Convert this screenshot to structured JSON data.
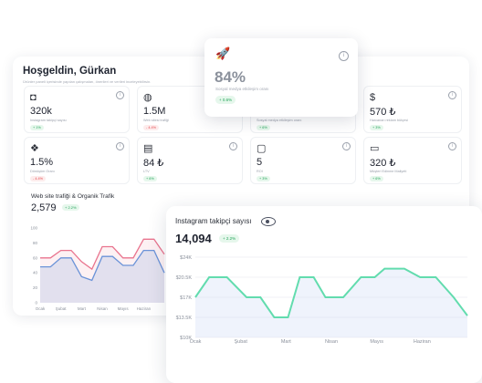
{
  "dashboard": {
    "greeting": "Hoşgeldin, Gürkan",
    "subtitle": "Ürünler paneli içerisinde yapılan çalışmaları, önerileri ve verileri inceleyebilirsin."
  },
  "rocket_card": {
    "icon": "rocket-icon",
    "value": "84%",
    "label": "Sosyal medya etkileşim oranı",
    "change": "+ 0.6%"
  },
  "tiles": [
    {
      "icon": "instagram-icon",
      "value": "320k",
      "label": "Instagram takipçi sayısı",
      "change": "+ 1%",
      "trend": "pos"
    },
    {
      "icon": "globe-icon",
      "value": "1.5M",
      "label": "Web sitesi trafiği",
      "change": "- 4.4%",
      "trend": "neg"
    },
    {
      "icon": "share-icon",
      "value": "",
      "label": "Sosyal medya etkileşim oranı",
      "change": "+ 6%",
      "trend": "pos"
    },
    {
      "icon": "dollar-icon",
      "value": "570 ₺",
      "label": "Harcanan reklam bütçesi",
      "change": "+ 3%",
      "trend": "pos"
    },
    {
      "icon": "grid-icon",
      "value": "1.5%",
      "label": "Dönüşüm Oranı",
      "change": "- 4.4%",
      "trend": "neg"
    },
    {
      "icon": "ltv-icon",
      "value": "84 ₺",
      "label": "LTV",
      "change": "+ 6%",
      "trend": "pos"
    },
    {
      "icon": "roi-icon",
      "value": "5",
      "label": "ROI",
      "change": "+ 3%",
      "trend": "pos"
    },
    {
      "icon": "card-icon",
      "value": "320 ₺",
      "label": "Müşteri Edinme Maliyeti",
      "change": "+ 6%",
      "trend": "pos"
    }
  ],
  "web_chart": {
    "title": "Web site trafiği & Organik Trafik",
    "value": "2,579",
    "change": "+ 2.2%"
  },
  "insta_chart": {
    "title": "Instagram takipçi sayısı",
    "value": "14,094",
    "change": "+ 2.2%"
  },
  "chart_data": [
    {
      "type": "line",
      "title": "Web site trafiği & Organik Trafik",
      "categories": [
        "Ocak",
        "Şubat",
        "Mart",
        "Nisan",
        "Mayıs",
        "Haziran"
      ],
      "ylim": [
        0,
        100
      ],
      "yticks": [
        0,
        20,
        40,
        60,
        80,
        100
      ],
      "x": [
        0,
        0.5,
        1,
        1.5,
        2,
        2.5,
        3,
        3.5,
        4,
        4.5,
        5,
        5.5,
        6
      ],
      "series": [
        {
          "values": [
            60,
            60,
            70,
            70,
            55,
            45,
            75,
            75,
            60,
            60,
            85,
            85,
            65
          ]
        },
        {
          "values": [
            48,
            48,
            60,
            60,
            35,
            30,
            62,
            62,
            50,
            50,
            70,
            70,
            40
          ]
        }
      ],
      "grid": false,
      "colors": [
        "#e9748e",
        "#6b93d8"
      ]
    },
    {
      "type": "line",
      "title": "Instagram takipçi sayısı",
      "categories": [
        "Ocak",
        "Şubat",
        "Mart",
        "Nisan",
        "Mayıs",
        "Haziran"
      ],
      "yticks": [
        "$10K",
        "$13.5K",
        "$17K",
        "$20.5K",
        "$24K"
      ],
      "ylim": [
        10000,
        24000
      ],
      "x": [
        0,
        0.35,
        0.8,
        1.3,
        1.65,
        2,
        2.35,
        2.65,
        3,
        3.3,
        3.75,
        4.2,
        4.55,
        4.8,
        5.3,
        5.7,
        6.1,
        6.55,
        6.9
      ],
      "series": [
        {
          "values": [
            17000,
            20500,
            20500,
            17000,
            17000,
            13500,
            13500,
            20500,
            20500,
            17000,
            17000,
            20500,
            20500,
            22000,
            22000,
            20500,
            20500,
            17000,
            13800
          ]
        }
      ],
      "grid": true,
      "colors": [
        "#62dcae"
      ]
    }
  ]
}
